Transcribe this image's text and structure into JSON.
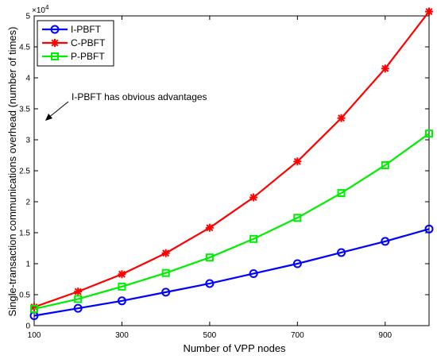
{
  "chart_data": {
    "type": "line",
    "xlabel": "Number of VPP nodes",
    "ylabel": "Single-transaction communications overhead (number of times)",
    "y_exponent_label": "×10",
    "y_exponent_power": "4",
    "xlim": [
      100,
      1000
    ],
    "ylim": [
      0,
      5
    ],
    "x": [
      100,
      200,
      300,
      400,
      500,
      600,
      700,
      800,
      900,
      1000
    ],
    "x_ticks": [
      100,
      300,
      500,
      700,
      900
    ],
    "y_ticks": [
      0,
      0.5,
      1,
      1.5,
      2,
      2.5,
      3,
      3.5,
      4,
      4.5,
      5
    ],
    "grid": false,
    "legend_position": "top-left",
    "series": [
      {
        "name": "I-PBFT",
        "color": "#0000ff",
        "marker": "circle",
        "values": [
          0.16,
          0.28,
          0.4,
          0.54,
          0.68,
          0.84,
          1.0,
          1.18,
          1.36,
          1.56
        ]
      },
      {
        "name": "C-PBFT",
        "color": "#ff0000",
        "marker": "star",
        "values": [
          0.3,
          0.55,
          0.83,
          1.17,
          1.58,
          2.07,
          2.65,
          3.35,
          4.15,
          5.07
        ]
      },
      {
        "name": "P-PBFT",
        "color": "#00ee00",
        "marker": "square",
        "values": [
          0.27,
          0.43,
          0.63,
          0.85,
          1.1,
          1.4,
          1.74,
          2.14,
          2.59,
          3.1
        ]
      }
    ],
    "annotation": {
      "text": "I-PBFT has obvious advantages"
    }
  }
}
